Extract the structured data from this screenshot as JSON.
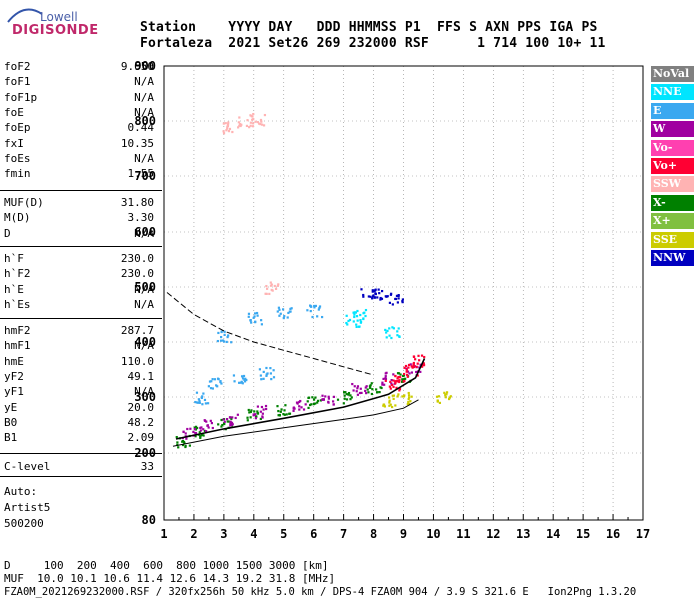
{
  "logo": {
    "top": "Lowell",
    "main": "DIGISONDE"
  },
  "header": {
    "line1": "Station    YYYY DAY   DDD HHMMSS P1  FFS S AXN PPS IGA PS",
    "line2": "Fortaleza  2021 Set26 269 232000 RSF      1 714 100 10+ 11"
  },
  "params_group1": [
    {
      "name": "foF2",
      "value": "9.650"
    },
    {
      "name": "foF1",
      "value": "N/A"
    },
    {
      "name": "foF1p",
      "value": "N/A"
    },
    {
      "name": "foE",
      "value": "N/A"
    },
    {
      "name": "foEp",
      "value": "0.44"
    },
    {
      "name": "fxI",
      "value": "10.35"
    },
    {
      "name": "foEs",
      "value": "N/A"
    },
    {
      "name": "fmin",
      "value": "1.55"
    }
  ],
  "params_group2": [
    {
      "name": "MUF(D)",
      "value": "31.80"
    },
    {
      "name": "M(D)",
      "value": "3.30"
    },
    {
      "name": "D",
      "value": "N/A"
    }
  ],
  "params_group3": [
    {
      "name": "h`F",
      "value": "230.0"
    },
    {
      "name": "h`F2",
      "value": "230.0"
    },
    {
      "name": "h`E",
      "value": "N/A"
    },
    {
      "name": "h`Es",
      "value": "N/A"
    }
  ],
  "params_group4": [
    {
      "name": "hmF2",
      "value": "287.7"
    },
    {
      "name": "hmF1",
      "value": "N/A"
    },
    {
      "name": "hmE",
      "value": "110.0"
    },
    {
      "name": "yF2",
      "value": "49.1"
    },
    {
      "name": "yF1",
      "value": "N/A"
    },
    {
      "name": "yE",
      "value": "20.0"
    },
    {
      "name": "B0",
      "value": "48.2"
    },
    {
      "name": "B1",
      "value": "2.09"
    }
  ],
  "params_group5": [
    {
      "name": "C-level",
      "value": "33"
    }
  ],
  "auto": {
    "label": "Auto:",
    "program": "Artist5",
    "version": "500200"
  },
  "legend": [
    {
      "label": "NoVal",
      "color": "#808080"
    },
    {
      "label": "NNE",
      "color": "#00e5ff"
    },
    {
      "label": "E",
      "color": "#3aa8f0"
    },
    {
      "label": "W",
      "color": "#a000a0"
    },
    {
      "label": "Vo-",
      "color": "#ff40b0"
    },
    {
      "label": "Vo+",
      "color": "#ff0033"
    },
    {
      "label": "SSW",
      "color": "#ffb3b3"
    },
    {
      "label": "X-",
      "color": "#008000"
    },
    {
      "label": "X+",
      "color": "#80c040"
    },
    {
      "label": "SSE",
      "color": "#cccc00"
    },
    {
      "label": "NNW",
      "color": "#0000c0"
    }
  ],
  "footer": {
    "line1": "D     100  200  400  600  800 1000 1500 3000 [km]",
    "line2": "MUF  10.0 10.1 10.6 11.4 12.6 14.3 19.2 31.8 [MHz]",
    "line3": "FZA0M_2021269232000.RSF / 320fx256h 50 kHz 5.0 km / DPS-4 FZA0M 904 / 3.9 S 321.6 E   Ion2Png 1.3.20"
  },
  "chart_data": {
    "type": "scatter",
    "title": "",
    "xlabel": "",
    "ylabel": "",
    "x_ticks": [
      1,
      2,
      3,
      4,
      5,
      6,
      7,
      8,
      9,
      10,
      11,
      12,
      13,
      14,
      15,
      16,
      17
    ],
    "y_ticks": [
      80,
      200,
      300,
      400,
      500,
      600,
      700,
      800,
      900
    ],
    "xlim": [
      1,
      17
    ],
    "ylim": [
      80,
      900
    ],
    "grid": true,
    "legend_position": "right",
    "series": [
      {
        "name": "X-",
        "values": [
          [
            1.6,
            222
          ],
          [
            2.2,
            238
          ],
          [
            3.0,
            255
          ],
          [
            4.0,
            268
          ],
          [
            5.0,
            280
          ],
          [
            6.0,
            292
          ],
          [
            7.0,
            300
          ],
          [
            8.0,
            318
          ],
          [
            9.0,
            340
          ]
        ]
      },
      {
        "name": "W",
        "values": [
          [
            1.8,
            235
          ],
          [
            2.4,
            250
          ],
          [
            3.2,
            262
          ],
          [
            4.2,
            275
          ],
          [
            5.5,
            285
          ],
          [
            6.5,
            298
          ],
          [
            7.5,
            315
          ],
          [
            8.5,
            335
          ],
          [
            9.3,
            352
          ]
        ]
      },
      {
        "name": "Vo+",
        "values": [
          [
            8.6,
            325
          ],
          [
            8.9,
            338
          ],
          [
            9.2,
            352
          ],
          [
            9.5,
            368
          ]
        ]
      },
      {
        "name": "E",
        "values": [
          [
            2.2,
            300
          ],
          [
            2.7,
            325
          ],
          [
            3.5,
            335
          ],
          [
            4.4,
            345
          ],
          [
            3.0,
            410
          ],
          [
            4.0,
            445
          ],
          [
            5.0,
            455
          ],
          [
            6.0,
            458
          ]
        ]
      },
      {
        "name": "NNE",
        "values": [
          [
            7.3,
            440
          ],
          [
            7.5,
            450
          ],
          [
            8.6,
            420
          ]
        ]
      },
      {
        "name": "NNW",
        "values": [
          [
            7.8,
            490
          ],
          [
            8.2,
            490
          ],
          [
            8.7,
            480
          ]
        ]
      },
      {
        "name": "SSE",
        "values": [
          [
            8.5,
            295
          ],
          [
            9.0,
            300
          ],
          [
            10.3,
            300
          ]
        ]
      },
      {
        "name": "SSW",
        "values": [
          [
            3.2,
            790
          ],
          [
            3.7,
            800
          ],
          [
            4.1,
            805
          ],
          [
            4.6,
            500
          ]
        ]
      }
    ],
    "traces": [
      {
        "name": "h'F trace",
        "values": [
          [
            1.3,
            212
          ],
          [
            3,
            230
          ],
          [
            5,
            245
          ],
          [
            7,
            260
          ],
          [
            8,
            268
          ],
          [
            9.0,
            280
          ],
          [
            9.5,
            295
          ]
        ]
      },
      {
        "name": "upper trace",
        "values": [
          [
            1.4,
            225
          ],
          [
            3,
            243
          ],
          [
            5,
            262
          ],
          [
            7,
            282
          ],
          [
            8.5,
            305
          ],
          [
            9.4,
            335
          ],
          [
            9.7,
            370
          ]
        ]
      },
      {
        "name": "X trace",
        "values": [
          [
            1.1,
            490
          ],
          [
            2,
            450
          ],
          [
            3,
            420
          ],
          [
            4,
            400
          ],
          [
            5,
            385
          ],
          [
            6,
            370
          ],
          [
            7,
            355
          ],
          [
            8,
            340
          ]
        ]
      }
    ]
  }
}
